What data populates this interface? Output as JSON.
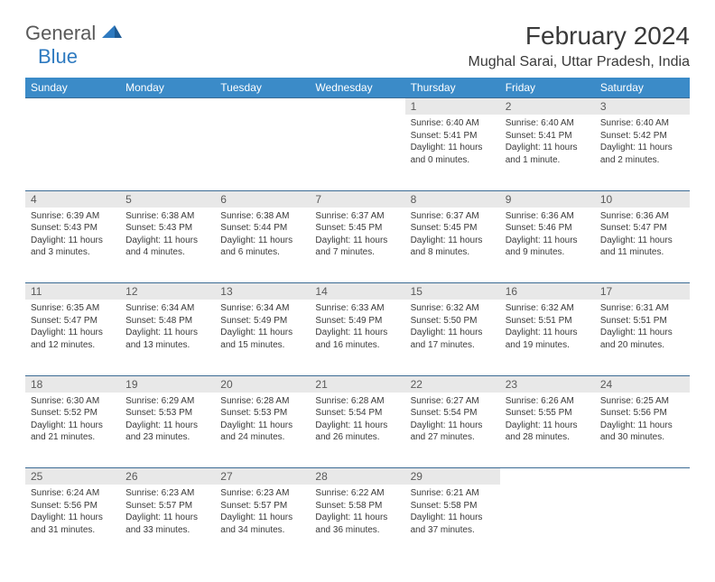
{
  "brand": {
    "part1": "General",
    "part2": "Blue"
  },
  "title": "February 2024",
  "location": "Mughal Sarai, Uttar Pradesh, India",
  "colors": {
    "header_bg": "#3b8bc8",
    "header_text": "#ffffff",
    "daynum_bg": "#e8e8e8",
    "row_border": "#3b6b94",
    "text": "#3a3a3a",
    "brand_gray": "#5a5a5a",
    "brand_blue": "#2e7ac0"
  },
  "weekdays": [
    "Sunday",
    "Monday",
    "Tuesday",
    "Wednesday",
    "Thursday",
    "Friday",
    "Saturday"
  ],
  "weeks": [
    [
      null,
      null,
      null,
      null,
      {
        "n": "1",
        "sr": "6:40 AM",
        "ss": "5:41 PM",
        "dl": "11 hours and 0 minutes."
      },
      {
        "n": "2",
        "sr": "6:40 AM",
        "ss": "5:41 PM",
        "dl": "11 hours and 1 minute."
      },
      {
        "n": "3",
        "sr": "6:40 AM",
        "ss": "5:42 PM",
        "dl": "11 hours and 2 minutes."
      }
    ],
    [
      {
        "n": "4",
        "sr": "6:39 AM",
        "ss": "5:43 PM",
        "dl": "11 hours and 3 minutes."
      },
      {
        "n": "5",
        "sr": "6:38 AM",
        "ss": "5:43 PM",
        "dl": "11 hours and 4 minutes."
      },
      {
        "n": "6",
        "sr": "6:38 AM",
        "ss": "5:44 PM",
        "dl": "11 hours and 6 minutes."
      },
      {
        "n": "7",
        "sr": "6:37 AM",
        "ss": "5:45 PM",
        "dl": "11 hours and 7 minutes."
      },
      {
        "n": "8",
        "sr": "6:37 AM",
        "ss": "5:45 PM",
        "dl": "11 hours and 8 minutes."
      },
      {
        "n": "9",
        "sr": "6:36 AM",
        "ss": "5:46 PM",
        "dl": "11 hours and 9 minutes."
      },
      {
        "n": "10",
        "sr": "6:36 AM",
        "ss": "5:47 PM",
        "dl": "11 hours and 11 minutes."
      }
    ],
    [
      {
        "n": "11",
        "sr": "6:35 AM",
        "ss": "5:47 PM",
        "dl": "11 hours and 12 minutes."
      },
      {
        "n": "12",
        "sr": "6:34 AM",
        "ss": "5:48 PM",
        "dl": "11 hours and 13 minutes."
      },
      {
        "n": "13",
        "sr": "6:34 AM",
        "ss": "5:49 PM",
        "dl": "11 hours and 15 minutes."
      },
      {
        "n": "14",
        "sr": "6:33 AM",
        "ss": "5:49 PM",
        "dl": "11 hours and 16 minutes."
      },
      {
        "n": "15",
        "sr": "6:32 AM",
        "ss": "5:50 PM",
        "dl": "11 hours and 17 minutes."
      },
      {
        "n": "16",
        "sr": "6:32 AM",
        "ss": "5:51 PM",
        "dl": "11 hours and 19 minutes."
      },
      {
        "n": "17",
        "sr": "6:31 AM",
        "ss": "5:51 PM",
        "dl": "11 hours and 20 minutes."
      }
    ],
    [
      {
        "n": "18",
        "sr": "6:30 AM",
        "ss": "5:52 PM",
        "dl": "11 hours and 21 minutes."
      },
      {
        "n": "19",
        "sr": "6:29 AM",
        "ss": "5:53 PM",
        "dl": "11 hours and 23 minutes."
      },
      {
        "n": "20",
        "sr": "6:28 AM",
        "ss": "5:53 PM",
        "dl": "11 hours and 24 minutes."
      },
      {
        "n": "21",
        "sr": "6:28 AM",
        "ss": "5:54 PM",
        "dl": "11 hours and 26 minutes."
      },
      {
        "n": "22",
        "sr": "6:27 AM",
        "ss": "5:54 PM",
        "dl": "11 hours and 27 minutes."
      },
      {
        "n": "23",
        "sr": "6:26 AM",
        "ss": "5:55 PM",
        "dl": "11 hours and 28 minutes."
      },
      {
        "n": "24",
        "sr": "6:25 AM",
        "ss": "5:56 PM",
        "dl": "11 hours and 30 minutes."
      }
    ],
    [
      {
        "n": "25",
        "sr": "6:24 AM",
        "ss": "5:56 PM",
        "dl": "11 hours and 31 minutes."
      },
      {
        "n": "26",
        "sr": "6:23 AM",
        "ss": "5:57 PM",
        "dl": "11 hours and 33 minutes."
      },
      {
        "n": "27",
        "sr": "6:23 AM",
        "ss": "5:57 PM",
        "dl": "11 hours and 34 minutes."
      },
      {
        "n": "28",
        "sr": "6:22 AM",
        "ss": "5:58 PM",
        "dl": "11 hours and 36 minutes."
      },
      {
        "n": "29",
        "sr": "6:21 AM",
        "ss": "5:58 PM",
        "dl": "11 hours and 37 minutes."
      },
      null,
      null
    ]
  ],
  "labels": {
    "sunrise": "Sunrise:",
    "sunset": "Sunset:",
    "daylight": "Daylight:"
  }
}
